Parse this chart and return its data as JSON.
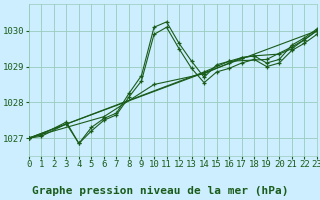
{
  "background_color": "#cceeff",
  "plot_bg_color": "#cceeff",
  "grid_color": "#99ccbb",
  "line_color": "#1a5c1a",
  "title": "Graphe pression niveau de la mer (hPa)",
  "xlim": [
    0,
    23
  ],
  "ylim": [
    1026.5,
    1030.75
  ],
  "yticks": [
    1027,
    1028,
    1029,
    1030
  ],
  "xticks": [
    0,
    1,
    2,
    3,
    4,
    5,
    6,
    7,
    8,
    9,
    10,
    11,
    12,
    13,
    14,
    15,
    16,
    17,
    18,
    19,
    20,
    21,
    22,
    23
  ],
  "series": [
    {
      "x": [
        0,
        1,
        3,
        4,
        5,
        6,
        7,
        8,
        9,
        10,
        11,
        12,
        13,
        14,
        15,
        16,
        17,
        18,
        19,
        20,
        21,
        22,
        23
      ],
      "y": [
        1027.0,
        1027.1,
        1027.45,
        1026.85,
        1027.3,
        1027.55,
        1027.7,
        1028.25,
        1028.75,
        1030.1,
        1030.25,
        1029.65,
        1029.15,
        1028.7,
        1029.05,
        1029.15,
        1029.25,
        1029.3,
        1029.1,
        1029.2,
        1029.6,
        1029.8,
        1030.05
      ]
    },
    {
      "x": [
        0,
        1,
        3,
        4,
        5,
        6,
        7,
        8,
        9,
        10,
        11,
        12,
        13,
        14,
        15,
        16,
        17,
        18,
        19,
        20,
        21,
        22,
        23
      ],
      "y": [
        1027.0,
        1027.05,
        1027.4,
        1026.85,
        1027.2,
        1027.5,
        1027.65,
        1028.15,
        1028.6,
        1029.9,
        1030.1,
        1029.5,
        1028.95,
        1028.55,
        1028.85,
        1028.95,
        1029.1,
        1029.2,
        1029.0,
        1029.1,
        1029.45,
        1029.65,
        1029.9
      ]
    },
    {
      "x": [
        0,
        6,
        10,
        14,
        16,
        17,
        18,
        20,
        21,
        22,
        23
      ],
      "y": [
        1027.0,
        1027.6,
        1028.5,
        1028.8,
        1029.1,
        1029.25,
        1029.3,
        1029.35,
        1029.5,
        1029.75,
        1030.0
      ]
    },
    {
      "x": [
        0,
        23
      ],
      "y": [
        1027.0,
        1030.0
      ]
    },
    {
      "x": [
        0,
        14,
        16,
        19,
        21,
        22,
        23
      ],
      "y": [
        1027.0,
        1028.85,
        1029.15,
        1029.2,
        1029.55,
        1029.75,
        1030.0
      ]
    }
  ],
  "title_fontsize": 8,
  "tick_fontsize": 6.5
}
